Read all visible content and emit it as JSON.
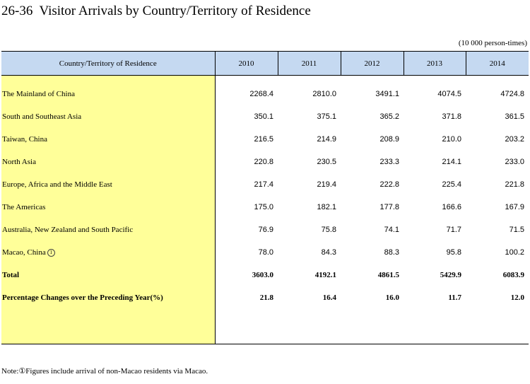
{
  "title": "26-36  Visitor Arrivals by Country/Territory of Residence",
  "unit": "(10 000 person-times)",
  "header": {
    "label": "Country/Territory of Residence",
    "years": [
      "2010",
      "2011",
      "2012",
      "2013",
      "2014"
    ]
  },
  "rows": [
    {
      "label": "The Mainland of China",
      "values": [
        "2268.4",
        "2810.0",
        "3491.1",
        "4074.5",
        "4724.8"
      ]
    },
    {
      "label": "South and Southeast Asia",
      "values": [
        "350.1",
        "375.1",
        "365.2",
        "371.8",
        "361.5"
      ]
    },
    {
      "label": "Taiwan, China",
      "values": [
        "216.5",
        "214.9",
        "208.9",
        "210.0",
        "203.2"
      ]
    },
    {
      "label": "North Asia",
      "values": [
        "220.8",
        "230.5",
        "233.3",
        "214.1",
        "233.0"
      ]
    },
    {
      "label": "Europe, Africa and the Middle East",
      "values": [
        "217.4",
        "219.4",
        "222.8",
        "225.4",
        "221.8"
      ]
    },
    {
      "label": "The Americas",
      "values": [
        "175.0",
        "182.1",
        "177.8",
        "166.6",
        "167.9"
      ]
    },
    {
      "label": "Australia, New Zealand and South Pacific",
      "values": [
        "76.9",
        "75.8",
        "74.1",
        "71.7",
        "71.5"
      ]
    },
    {
      "label": "Macao, China",
      "mark": "1",
      "values": [
        "78.0",
        "84.3",
        "88.3",
        "95.8",
        "100.2"
      ]
    }
  ],
  "total": {
    "label": "Total",
    "values": [
      "3603.0",
      "4192.1",
      "4861.5",
      "5429.9",
      "6083.9"
    ]
  },
  "pct": {
    "label": "Percentage Changes over the Preceding Year(%)",
    "values": [
      "21.8",
      "16.4",
      "16.0",
      "11.7",
      "12.0"
    ]
  },
  "note": "Note:①Figures include arrival of non-Macao residents via Macao.",
  "colors": {
    "header_bg": "#c5d9f1",
    "label_bg": "#ffff99"
  }
}
